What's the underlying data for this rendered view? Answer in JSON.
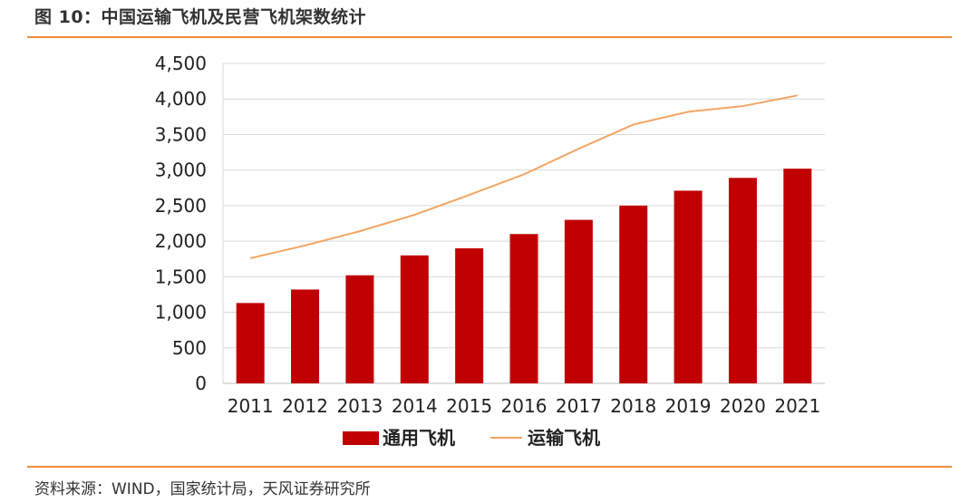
{
  "header": {
    "title": "图 10：中国运输飞机及民营飞机架数统计"
  },
  "footer": {
    "source": "资料来源：WIND，国家统计局，天风证券研究所"
  },
  "colors": {
    "accent_rule": "#f08c3c",
    "bar": "#c00000",
    "line": "#f4a460",
    "grid": "#d9d9d9"
  },
  "chart_data": {
    "type": "bar",
    "categories": [
      "2011",
      "2012",
      "2013",
      "2014",
      "2015",
      "2016",
      "2017",
      "2018",
      "2019",
      "2020",
      "2021"
    ],
    "series": [
      {
        "name": "通用飞机",
        "type": "bar",
        "values": [
          1130,
          1320,
          1520,
          1800,
          1900,
          2100,
          2300,
          2500,
          2710,
          2890,
          3020
        ]
      },
      {
        "name": "运输飞机",
        "type": "line",
        "values": [
          1760,
          1940,
          2140,
          2370,
          2650,
          2940,
          3300,
          3640,
          3820,
          3900,
          4050
        ]
      }
    ],
    "ylim": [
      0,
      4500
    ],
    "yticks": [
      "0",
      "500",
      "1,000",
      "1,500",
      "2,000",
      "2,500",
      "3,000",
      "3,500",
      "4,000",
      "4,500"
    ],
    "grid": true,
    "legend_position": "bottom-center"
  }
}
